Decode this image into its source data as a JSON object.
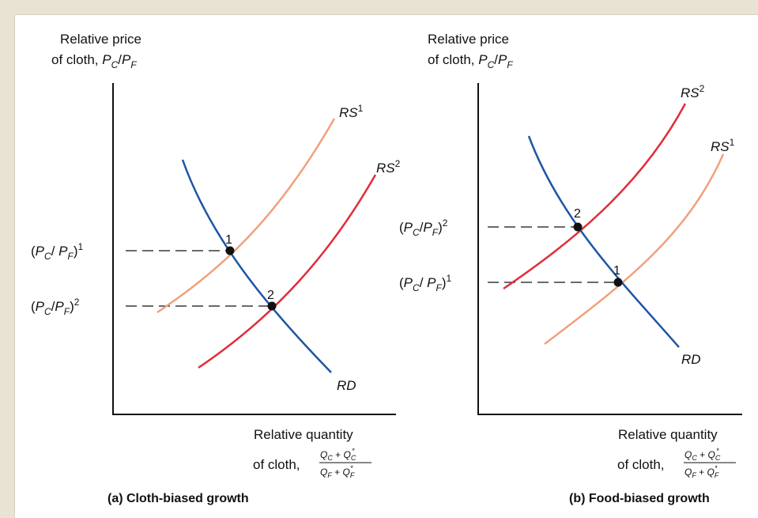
{
  "colors": {
    "rd": "#1f55a5",
    "rs_light": "#f1a07e",
    "rs_dark": "#e12d3a",
    "axis": "#111111",
    "border": "#e9e3d3"
  },
  "panels": [
    {
      "id": "a",
      "caption": "(a) Cloth-biased growth",
      "y_axis_label": {
        "line1": "Relative price",
        "line2_prefix": "of cloth, "
      },
      "x_axis_label": {
        "line1": "Relative quantity",
        "line2_prefix": "of cloth, "
      },
      "curves": [
        {
          "id": "RS1",
          "name": "RS",
          "sup": "1",
          "color_key": "rs_light"
        },
        {
          "id": "RS2",
          "name": "RS",
          "sup": "2",
          "color_key": "rs_dark"
        },
        {
          "id": "RD",
          "name": "RD",
          "sup": "",
          "color_key": "rd"
        }
      ],
      "equilibria": [
        {
          "label": "1",
          "price_label_sup": "1"
        },
        {
          "label": "2",
          "price_label_sup": "2"
        }
      ]
    },
    {
      "id": "b",
      "caption": "(b) Food-biased growth",
      "y_axis_label": {
        "line1": "Relative price",
        "line2_prefix": "of cloth, "
      },
      "x_axis_label": {
        "line1": "Relative quantity",
        "line2_prefix": "of cloth, "
      },
      "curves": [
        {
          "id": "RS2",
          "name": "RS",
          "sup": "2",
          "color_key": "rs_dark"
        },
        {
          "id": "RS1",
          "name": "RS",
          "sup": "1",
          "color_key": "rs_light"
        },
        {
          "id": "RD",
          "name": "RD",
          "sup": "",
          "color_key": "rd"
        }
      ],
      "equilibria": [
        {
          "label": "2",
          "price_label_sup": "2"
        },
        {
          "label": "1",
          "price_label_sup": "1"
        }
      ]
    }
  ]
}
